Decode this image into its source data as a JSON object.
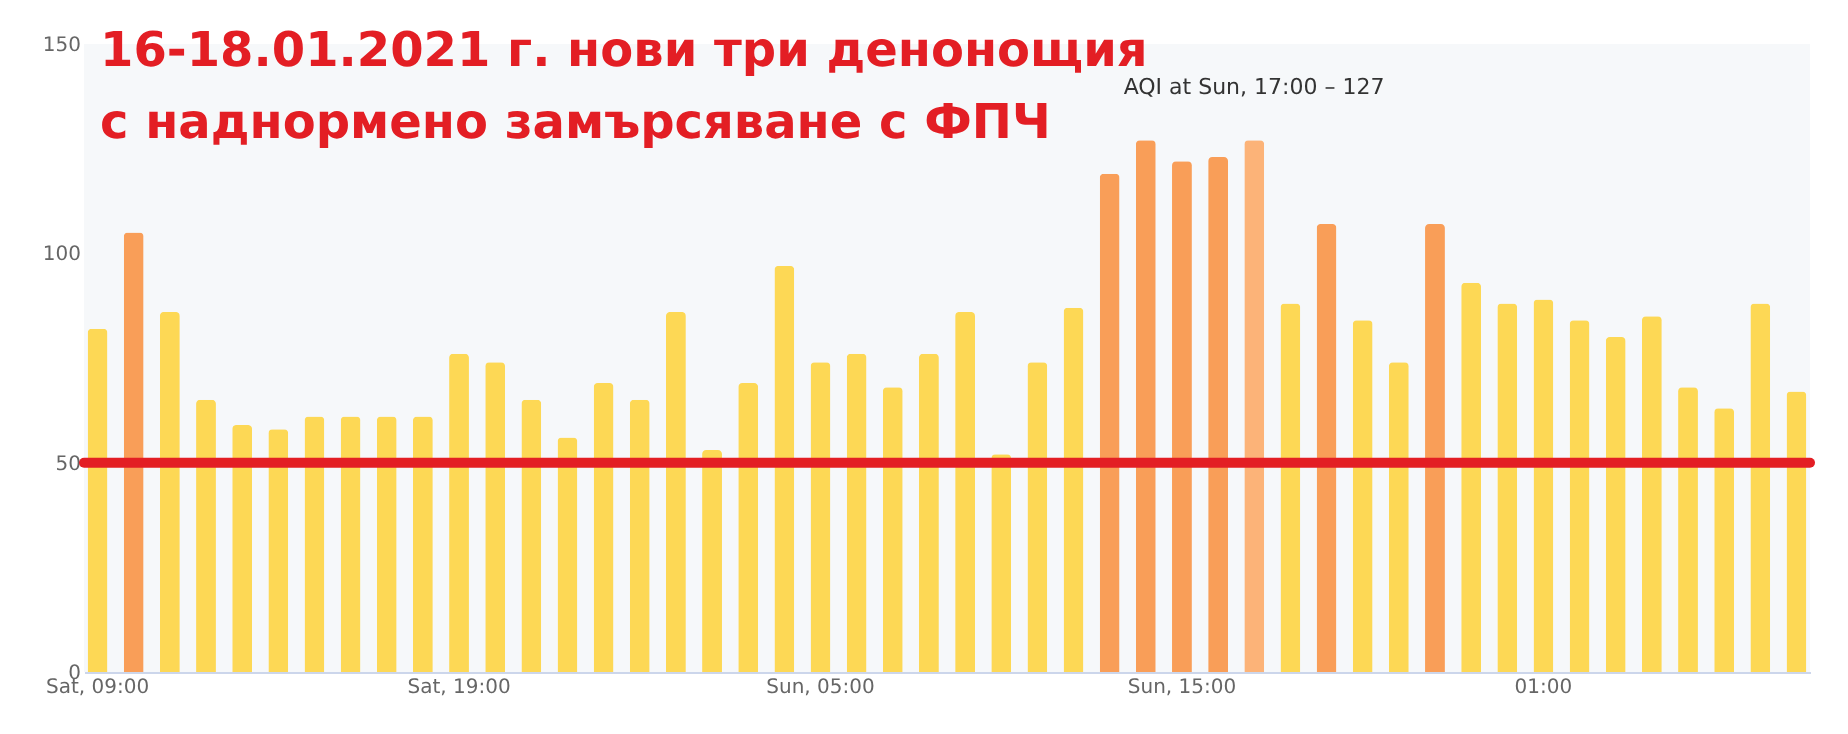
{
  "chart_data": {
    "type": "bar",
    "title": "16-18.01.2021 г. нови три денонощия\nс наднормено замърсяване с ФПЧ",
    "categories": [
      "Sat, 09:00",
      null,
      null,
      null,
      null,
      null,
      null,
      null,
      null,
      null,
      "Sat, 19:00",
      null,
      null,
      null,
      null,
      null,
      null,
      null,
      null,
      null,
      "Sun, 05:00",
      null,
      null,
      null,
      null,
      null,
      null,
      null,
      null,
      null,
      "Sun, 15:00",
      null,
      null,
      null,
      null,
      null,
      null,
      null,
      null,
      null,
      "01:00",
      null,
      null,
      null,
      null,
      null,
      null,
      null
    ],
    "values": [
      82,
      105,
      86,
      65,
      59,
      58,
      61,
      61,
      61,
      61,
      76,
      74,
      65,
      56,
      69,
      65,
      86,
      53,
      69,
      97,
      74,
      76,
      68,
      76,
      86,
      52,
      74,
      87,
      119,
      127,
      122,
      123,
      127,
      88,
      107,
      84,
      74,
      107,
      93,
      88,
      89,
      84,
      80,
      85,
      68,
      63,
      88,
      67
    ],
    "colors": [
      "#fdd855",
      "#f99e58",
      "#fdd855",
      "#fdd855",
      "#fdd855",
      "#fdd855",
      "#fdd855",
      "#fdd855",
      "#fdd855",
      "#fdd855",
      "#fdd855",
      "#fdd855",
      "#fdd855",
      "#fdd855",
      "#fdd855",
      "#fdd855",
      "#fdd855",
      "#fdd855",
      "#fdd855",
      "#fdd855",
      "#fdd855",
      "#fdd855",
      "#fdd855",
      "#fdd855",
      "#fdd855",
      "#fdd855",
      "#fdd855",
      "#fdd855",
      "#f99e58",
      "#f99e58",
      "#f99e58",
      "#f99e58",
      "#fcb378",
      "#fdd855",
      "#f99e58",
      "#fdd855",
      "#fdd855",
      "#f99e58",
      "#fdd855",
      "#fdd855",
      "#fdd855",
      "#fdd855",
      "#fdd855",
      "#fdd855",
      "#fdd855",
      "#fdd855",
      "#fdd855",
      "#fdd855"
    ],
    "ylim": [
      0,
      150
    ],
    "yticks": [
      0,
      50,
      100,
      150
    ],
    "grid": false,
    "ref_lines": [
      {
        "axis": "y",
        "value": 50,
        "color": "#e31e24"
      }
    ],
    "annotations": [
      "AQI at Sun, 17:00 – 127"
    ]
  }
}
